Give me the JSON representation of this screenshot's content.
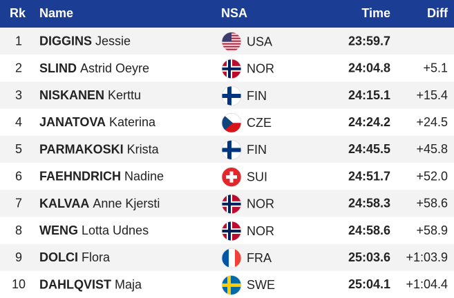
{
  "headers": [
    "Rk",
    "Name",
    "NSA",
    "Time",
    "Diff"
  ],
  "rows": [
    {
      "rank": "1",
      "surname": "DIGGINS",
      "given": "Jessie",
      "nsa": "USA",
      "time": "23:59.7"
    },
    {
      "rank": "2",
      "surname": "SLIND",
      "given": "Astrid Oeyre",
      "nsa": "NOR",
      "time": "24:04.8",
      "diff": "+5.1"
    },
    {
      "rank": "3",
      "surname": "NISKANEN",
      "given": "Kerttu",
      "nsa": "FIN",
      "time": "24:15.1",
      "diff": "+15.4"
    },
    {
      "rank": "4",
      "surname": "JANATOVA",
      "given": "Katerina",
      "nsa": "CZE",
      "time": "24:24.2",
      "diff": "+24.5"
    },
    {
      "rank": "5",
      "surname": "PARMAKOSKI",
      "given": "Krista",
      "nsa": "FIN",
      "time": "24:45.5",
      "diff": "+45.8"
    },
    {
      "rank": "6",
      "surname": "FAEHNDRICH",
      "given": "Nadine",
      "nsa": "SUI",
      "time": "24:51.7",
      "diff": "+52.0"
    },
    {
      "rank": "7",
      "surname": "KALVAA",
      "given": "Anne Kjersti",
      "nsa": "NOR",
      "time": "24:58.3",
      "diff": "+58.6"
    },
    {
      "rank": "8",
      "surname": "WENG",
      "given": "Lotta Udnes",
      "nsa": "NOR",
      "time": "24:58.6",
      "diff": "+58.9"
    },
    {
      "rank": "9",
      "surname": "DOLCI",
      "given": "Flora",
      "nsa": "FRA",
      "time": "25:03.6",
      "diff": "+1:03.9"
    },
    {
      "rank": "10",
      "surname": "DAHLQVIST",
      "given": "Maja",
      "nsa": "SWE",
      "time": "25:04.1",
      "diff": "+1:04.4"
    }
  ]
}
